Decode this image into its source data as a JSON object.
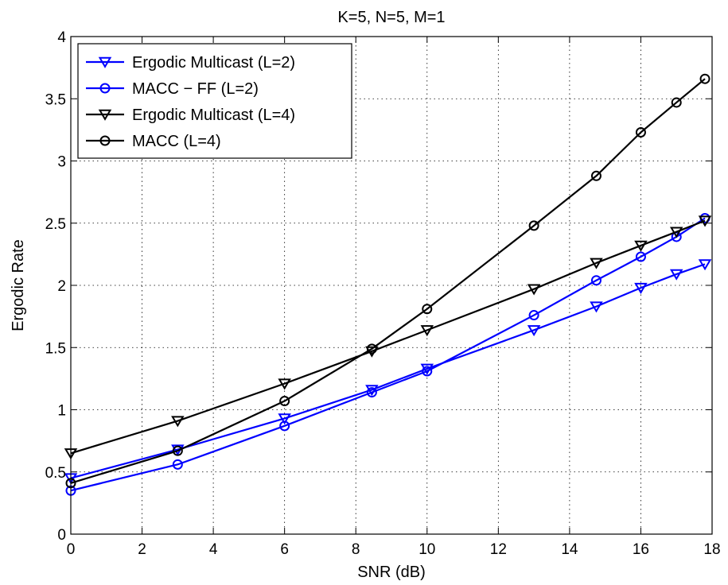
{
  "chart_data": {
    "type": "line",
    "title": "K=5, N=5, M=1",
    "xlabel": "SNR (dB)",
    "ylabel": "Ergodic Rate",
    "xlim": [
      0,
      18
    ],
    "ylim": [
      0,
      4
    ],
    "xticks": [
      0,
      2,
      4,
      6,
      8,
      10,
      12,
      14,
      16,
      18
    ],
    "yticks": [
      0,
      0.5,
      1,
      1.5,
      2,
      2.5,
      3,
      3.5,
      4
    ],
    "xtick_labels": [
      "0",
      "2",
      "4",
      "6",
      "8",
      "10",
      "12",
      "14",
      "16",
      "18"
    ],
    "ytick_labels": [
      "0",
      "0.5",
      "1",
      "1.5",
      "2",
      "2.5",
      "3",
      "3.5",
      "4"
    ],
    "grid": true,
    "legend_position": "top-left",
    "series": [
      {
        "name": "Ergodic Multicast (L=2)",
        "color": "#0000ff",
        "marker": "triangle-down",
        "x": [
          0,
          3,
          6,
          8.45,
          10,
          13,
          14.75,
          16,
          17,
          17.8
        ],
        "y": [
          0.45,
          0.68,
          0.93,
          1.16,
          1.33,
          1.64,
          1.83,
          1.98,
          2.09,
          2.17
        ]
      },
      {
        "name": "MACC − FF (L=2)",
        "color": "#0000ff",
        "marker": "circle",
        "x": [
          0,
          3,
          6,
          8.45,
          10,
          13,
          14.75,
          16,
          17,
          17.8
        ],
        "y": [
          0.35,
          0.56,
          0.87,
          1.14,
          1.31,
          1.76,
          2.04,
          2.23,
          2.39,
          2.54
        ]
      },
      {
        "name": "Ergodic Multicast (L=4)",
        "color": "#000000",
        "marker": "triangle-down",
        "x": [
          0,
          3,
          6,
          8.45,
          10,
          13,
          14.75,
          16,
          17,
          17.8
        ],
        "y": [
          0.65,
          0.91,
          1.21,
          1.47,
          1.64,
          1.97,
          2.18,
          2.32,
          2.43,
          2.52
        ]
      },
      {
        "name": "MACC (L=4)",
        "color": "#000000",
        "marker": "circle",
        "x": [
          0,
          3,
          6,
          8.45,
          10,
          13,
          14.75,
          16,
          17,
          17.8
        ],
        "y": [
          0.41,
          0.67,
          1.07,
          1.49,
          1.81,
          2.48,
          2.88,
          3.23,
          3.47,
          3.66
        ]
      }
    ]
  }
}
